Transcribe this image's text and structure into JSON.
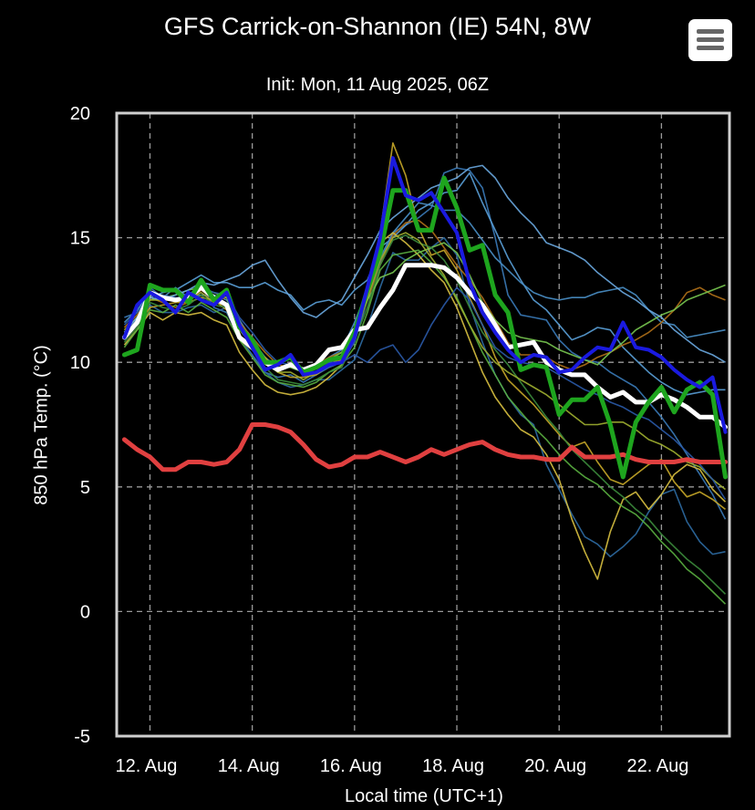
{
  "header": {
    "title": "GFS Carrick-on-Shannon (IE) 54N, 8W",
    "subtitle": "Init: Mon, 11 Aug 2025, 06Z",
    "menu_icon": "hamburger-menu-icon"
  },
  "chart_data": {
    "type": "line",
    "ylabel": "850 hPa Temp. (°C)",
    "xlabel": "Local time (UTC+1)",
    "ylim": [
      -5,
      20
    ],
    "yticks": [
      -5,
      0,
      5,
      10,
      15,
      20
    ],
    "xlim": [
      11.35,
      23.33
    ],
    "xticks": [
      {
        "x": 12,
        "label": "12. Aug"
      },
      {
        "x": 14,
        "label": "14. Aug"
      },
      {
        "x": 16,
        "label": "16. Aug"
      },
      {
        "x": 18,
        "label": "18. Aug"
      },
      {
        "x": 20,
        "label": "20. Aug"
      },
      {
        "x": 22,
        "label": "22. Aug"
      }
    ],
    "grid": true,
    "x_start": 11.5,
    "x_step": 0.25,
    "series": [
      {
        "role": "climatology",
        "color": "#e04040",
        "width": 5,
        "values": [
          6.9,
          6.5,
          6.2,
          5.7,
          5.7,
          6.0,
          6.0,
          5.9,
          6.0,
          6.5,
          7.5,
          7.5,
          7.4,
          7.2,
          6.7,
          6.1,
          5.8,
          5.9,
          6.2,
          6.2,
          6.4,
          6.2,
          6.0,
          6.2,
          6.5,
          6.3,
          6.5,
          6.7,
          6.8,
          6.5,
          6.3,
          6.2,
          6.2,
          6.1,
          6.1,
          6.6,
          6.2,
          6.2,
          6.2,
          6.3,
          6.1,
          6.0,
          6.0,
          6.0,
          6.1,
          6.0,
          6.0,
          6.0
        ]
      },
      {
        "role": "ensemble-mean",
        "color": "#ffffff",
        "width": 5,
        "values": [
          11.0,
          11.6,
          12.8,
          12.6,
          12.5,
          12.6,
          13.0,
          12.6,
          12.3,
          11.0,
          10.6,
          10.0,
          9.7,
          9.9,
          9.7,
          9.9,
          10.5,
          10.6,
          11.3,
          11.4,
          12.2,
          12.9,
          13.9,
          13.9,
          13.9,
          13.8,
          13.4,
          12.8,
          12.3,
          11.5,
          10.6,
          10.7,
          10.8,
          10.0,
          9.7,
          9.5,
          9.5,
          9.0,
          8.6,
          8.8,
          8.4,
          8.4,
          8.7,
          8.5,
          8.2,
          7.8,
          7.8,
          7.4
        ]
      },
      {
        "role": "operational",
        "color": "#1ea51e",
        "width": 5,
        "values": [
          10.3,
          10.5,
          13.1,
          12.9,
          12.9,
          12.4,
          13.3,
          12.5,
          12.9,
          11.4,
          10.9,
          10.0,
          10.0,
          10.2,
          9.6,
          9.8,
          10.1,
          10.2,
          11.2,
          12.9,
          14.4,
          16.9,
          16.9,
          15.3,
          15.3,
          17.4,
          16.2,
          14.5,
          14.7,
          12.7,
          12.0,
          9.7,
          9.9,
          9.8,
          7.9,
          8.5,
          8.5,
          9.0,
          7.5,
          5.4,
          7.6,
          8.4,
          9.0,
          8.0,
          8.9,
          9.2,
          8.7,
          5.4
        ]
      },
      {
        "role": "control",
        "color": "#1a1ae0",
        "width": 4,
        "values": [
          11.0,
          12.3,
          12.8,
          12.5,
          12.0,
          12.8,
          12.5,
          12.3,
          12.8,
          11.5,
          10.6,
          9.7,
          9.9,
          10.3,
          9.5,
          9.6,
          9.9,
          10.0,
          11.0,
          13.0,
          15.0,
          18.2,
          16.7,
          16.5,
          16.8,
          16.0,
          15.2,
          13.2,
          12.0,
          11.2,
          10.5,
          10.0,
          10.3,
          10.2,
          9.6,
          9.7,
          10.2,
          10.6,
          10.5,
          11.6,
          10.6,
          10.5,
          10.2,
          9.7,
          9.3,
          9.0,
          9.4,
          7.2
        ]
      }
    ],
    "members": [
      {
        "color": "#3a7ab8",
        "values": [
          11.8,
          12.0,
          13.0,
          12.6,
          12.5,
          12.7,
          13.1,
          12.2,
          12.0,
          11.0,
          10.3,
          9.6,
          9.4,
          9.5,
          9.2,
          9.5,
          9.8,
          10.0,
          10.8,
          12.5,
          14.0,
          15.2,
          15.5,
          15.8,
          16.2,
          17.6,
          17.8,
          17.7,
          17.0,
          15.0,
          12.7,
          11.9,
          11.8,
          11.7,
          10.9,
          10.4,
          10.1,
          10.0,
          9.6,
          9.3,
          9.0,
          8.4,
          7.8,
          7.1,
          6.3,
          5.5,
          4.7,
          3.7
        ]
      },
      {
        "color": "#5aa0d8",
        "values": [
          11.2,
          11.8,
          12.6,
          12.8,
          12.9,
          13.2,
          13.5,
          13.2,
          13.2,
          13.0,
          13.0,
          13.2,
          12.9,
          12.7,
          12.1,
          12.4,
          12.5,
          12.3,
          12.9,
          13.3,
          14.6,
          15.0,
          15.5,
          16.1,
          16.4,
          16.8,
          16.9,
          17.6,
          16.4,
          15.3,
          14.2,
          13.3,
          12.5,
          12.1,
          11.5,
          10.9,
          11.1,
          11.4,
          11.3,
          10.6,
          10.1,
          9.6,
          9.2,
          8.9,
          8.7,
          8.8,
          8.9,
          8.9
        ]
      },
      {
        "color": "#2e6ba3",
        "values": [
          10.9,
          11.6,
          12.3,
          12.0,
          12.0,
          12.2,
          12.3,
          12.0,
          12.2,
          11.0,
          10.3,
          9.6,
          9.2,
          9.0,
          9.1,
          9.3,
          9.3,
          9.7,
          10.1,
          11.4,
          13.0,
          14.4,
          14.1,
          14.1,
          14.6,
          15.0,
          14.3,
          12.3,
          10.8,
          9.5,
          8.6,
          7.9,
          7.5,
          5.9,
          4.9,
          3.9,
          3.0,
          2.7,
          2.2,
          2.6,
          3.1,
          4.0,
          4.7,
          4.9,
          3.6,
          2.8,
          2.3,
          2.4
        ]
      },
      {
        "color": "#4a90c8",
        "values": [
          11.6,
          12.1,
          12.8,
          12.6,
          13.0,
          12.6,
          12.7,
          12.7,
          12.5,
          11.7,
          10.9,
          10.2,
          9.8,
          9.8,
          9.6,
          9.8,
          10.2,
          10.5,
          11.6,
          12.9,
          14.2,
          15.2,
          15.8,
          16.4,
          16.3,
          16.1,
          16.1,
          15.6,
          14.9,
          14.2,
          13.7,
          13.2,
          12.8,
          12.6,
          12.5,
          12.6,
          12.6,
          12.8,
          12.9,
          13.0,
          12.7,
          12.1,
          11.6,
          11.5,
          11.0,
          11.1,
          11.2,
          11.3
        ]
      },
      {
        "color": "#c8a828",
        "values": [
          11.1,
          11.5,
          12.2,
          12.3,
          12.4,
          12.4,
          12.6,
          12.5,
          12.1,
          10.9,
          10.5,
          10.2,
          9.6,
          9.4,
          9.4,
          9.5,
          9.9,
          10.1,
          11.0,
          12.9,
          15.2,
          18.8,
          17.5,
          15.4,
          14.3,
          14.5,
          13.7,
          12.6,
          11.5,
          10.2,
          9.3,
          8.8,
          8.3,
          7.7,
          7.1,
          6.6,
          6.8,
          6.0,
          5.3,
          5.1,
          5.5,
          5.9,
          6.1,
          5.2,
          4.6,
          4.8,
          4.5,
          4.1
        ]
      },
      {
        "color": "#b07018",
        "values": [
          11.4,
          11.9,
          12.6,
          12.4,
          12.2,
          12.4,
          12.9,
          12.5,
          12.6,
          11.6,
          11.0,
          10.4,
          9.9,
          9.8,
          9.7,
          9.9,
          10.2,
          10.4,
          11.1,
          12.5,
          13.9,
          15.1,
          15.6,
          15.7,
          15.3,
          14.6,
          13.9,
          13.3,
          12.6,
          11.7,
          10.8,
          10.3,
          10.3,
          10.2,
          9.9,
          9.7,
          9.9,
          10.2,
          10.4,
          10.7,
          10.9,
          11.2,
          11.6,
          12.1,
          12.8,
          13.0,
          12.7,
          12.5
        ]
      },
      {
        "color": "#d8c040",
        "values": [
          10.7,
          11.3,
          12.0,
          11.7,
          12.0,
          11.9,
          12.0,
          11.7,
          11.5,
          10.4,
          9.7,
          9.1,
          8.8,
          8.7,
          8.8,
          9.0,
          9.4,
          9.9,
          11.1,
          12.8,
          14.8,
          15.2,
          14.8,
          14.3,
          13.7,
          13.2,
          12.2,
          10.9,
          9.6,
          8.6,
          7.9,
          7.3,
          7.0,
          6.3,
          5.3,
          3.7,
          2.4,
          1.3,
          3.2,
          4.5,
          4.8,
          4.1,
          4.7,
          5.5,
          5.9,
          5.7,
          4.9,
          4.4
        ]
      },
      {
        "color": "#5ab040",
        "values": [
          10.6,
          11.3,
          12.1,
          12.0,
          12.3,
          12.0,
          12.4,
          12.1,
          11.8,
          10.9,
          10.2,
          9.5,
          9.2,
          9.1,
          9.0,
          9.2,
          9.6,
          9.9,
          10.6,
          12.0,
          13.7,
          14.3,
          14.4,
          14.5,
          14.0,
          13.4,
          12.6,
          11.5,
          10.4,
          9.5,
          8.6,
          8.0,
          7.4,
          6.9,
          6.3,
          5.8,
          5.4,
          5.1,
          4.6,
          4.2,
          3.9,
          3.4,
          2.8,
          2.3,
          1.7,
          1.3,
          0.8,
          0.3
        ]
      },
      {
        "color": "#78c850",
        "values": [
          11.0,
          11.7,
          12.5,
          12.6,
          12.7,
          12.9,
          13.0,
          12.8,
          12.6,
          11.4,
          10.8,
          10.0,
          9.8,
          9.8,
          9.6,
          9.9,
          10.1,
          10.4,
          11.3,
          12.5,
          13.4,
          13.6,
          14.1,
          14.4,
          14.6,
          14.8,
          14.4,
          13.5,
          12.4,
          11.7,
          11.2,
          11.0,
          10.9,
          10.8,
          10.5,
          10.3,
          10.1,
          9.9,
          10.4,
          10.8,
          11.3,
          11.6,
          11.9,
          12.1,
          12.5,
          12.7,
          12.9,
          13.1
        ]
      },
      {
        "color": "#3c8c3c",
        "values": [
          10.8,
          11.4,
          12.4,
          12.2,
          12.1,
          12.3,
          12.7,
          12.3,
          12.2,
          11.1,
          10.5,
          9.8,
          9.3,
          9.2,
          9.1,
          9.3,
          9.6,
          9.8,
          10.9,
          12.2,
          13.9,
          14.9,
          15.1,
          14.8,
          14.6,
          14.1,
          13.3,
          12.2,
          11.2,
          10.5,
          9.9,
          9.2,
          8.5,
          7.8,
          7.2,
          6.5,
          6.0,
          5.5,
          5.0,
          4.6,
          4.1,
          3.7,
          3.1,
          2.6,
          2.1,
          1.7,
          1.2,
          0.7
        ]
      },
      {
        "color": "#a0b030",
        "values": [
          11.3,
          11.8,
          12.5,
          12.5,
          12.5,
          12.5,
          12.8,
          12.4,
          12.3,
          11.3,
          10.7,
          10.0,
          9.6,
          9.6,
          9.3,
          9.6,
          9.9,
          10.2,
          11.0,
          12.6,
          14.1,
          15.0,
          15.2,
          14.9,
          14.2,
          13.5,
          12.5,
          11.5,
          10.6,
          10.0,
          9.6,
          9.3,
          9.0,
          8.7,
          8.3,
          7.9,
          7.5,
          7.5,
          7.6,
          7.6,
          7.3,
          6.9,
          6.7,
          6.4,
          6.0,
          5.8,
          5.3,
          4.9
        ]
      },
      {
        "color": "#2a5aa8",
        "values": [
          11.5,
          12.0,
          12.7,
          12.7,
          12.6,
          12.6,
          13.0,
          12.8,
          12.7,
          11.8,
          11.2,
          10.5,
          10.0,
          9.9,
          9.6,
          9.8,
          10.0,
          10.0,
          10.3,
          10.0,
          10.5,
          10.7,
          10.0,
          10.5,
          11.5,
          12.3,
          13.0,
          12.5,
          11.5,
          10.6,
          10.2,
          10.0,
          9.9,
          9.8,
          9.5,
          9.2,
          8.9,
          8.7,
          8.4,
          8.2,
          7.9,
          7.7,
          7.3,
          6.9,
          6.4,
          5.9,
          5.3,
          4.5
        ]
      },
      {
        "color": "#6aa8e0",
        "values": [
          11.2,
          11.8,
          12.6,
          12.5,
          12.7,
          12.9,
          13.2,
          13.1,
          13.3,
          13.5,
          13.9,
          14.1,
          13.3,
          12.6,
          12.0,
          11.8,
          12.2,
          12.5,
          13.4,
          14.3,
          15.3,
          15.8,
          16.2,
          16.6,
          17.0,
          17.2,
          17.4,
          17.8,
          17.9,
          17.4,
          16.6,
          16.0,
          15.5,
          14.8,
          14.6,
          14.4,
          14.1,
          13.6,
          13.2,
          12.8,
          12.5,
          12.1,
          11.8,
          11.3,
          10.9,
          10.5,
          10.3,
          10.0
        ]
      }
    ]
  }
}
